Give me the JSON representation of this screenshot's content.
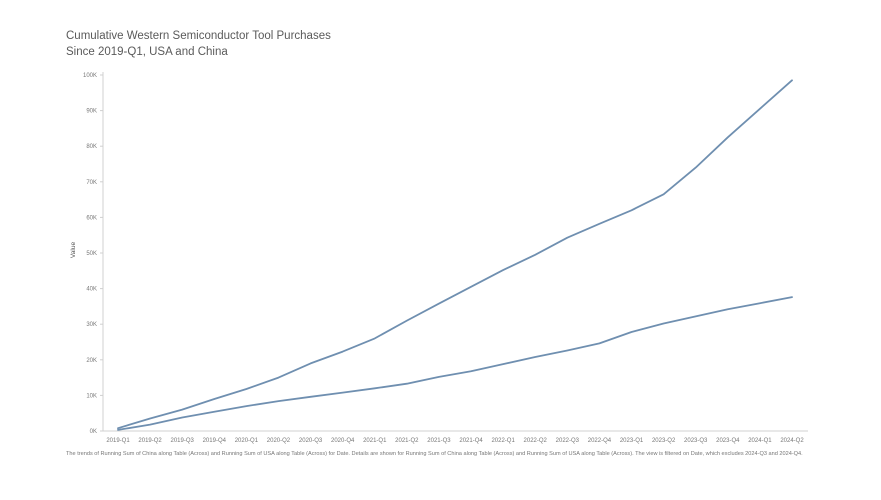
{
  "chart_data": {
    "type": "line",
    "title": "Cumulative Western Semiconductor Tool Purchases",
    "subtitle": "Since 2019-Q1, USA and China",
    "xlabel": "",
    "ylabel": "Value",
    "ylim": [
      0,
      100000
    ],
    "y_ticks": [
      "0K",
      "10K",
      "20K",
      "30K",
      "40K",
      "50K",
      "60K",
      "70K",
      "80K",
      "90K",
      "100K"
    ],
    "categories": [
      "2019-Q1",
      "2019-Q2",
      "2019-Q3",
      "2019-Q4",
      "2020-Q1",
      "2020-Q2",
      "2020-Q3",
      "2020-Q4",
      "2021-Q1",
      "2021-Q2",
      "2021-Q3",
      "2021-Q4",
      "2022-Q1",
      "2022-Q2",
      "2022-Q3",
      "2022-Q4",
      "2023-Q1",
      "2023-Q2",
      "2023-Q3",
      "2023-Q4",
      "2024-Q1",
      "2024-Q2"
    ],
    "series": [
      {
        "values": [
          800,
          3500,
          6000,
          9000,
          11800,
          15000,
          19000,
          22300,
          26000,
          31000,
          35800,
          40500,
          45200,
          49500,
          54300,
          58200,
          62000,
          66500,
          74000,
          82500,
          90500,
          98500
        ]
      },
      {
        "values": [
          300,
          1800,
          3800,
          5400,
          7000,
          8400,
          9600,
          10800,
          12000,
          13300,
          15200,
          16800,
          18800,
          20800,
          22600,
          24600,
          27800,
          30200,
          32200,
          34200,
          35900,
          37600
        ]
      }
    ],
    "grid": false,
    "legend": "none",
    "colors": {
      "line": "#6f8fb0"
    }
  },
  "footnote": "The trends of Running Sum of China along Table (Across) and Running Sum of USA along Table (Across) for Date.  Details are shown for Running Sum of China along Table (Across) and Running Sum of USA along Table (Across). The view is filtered on Date, which excludes 2024-Q3 and 2024-Q4."
}
